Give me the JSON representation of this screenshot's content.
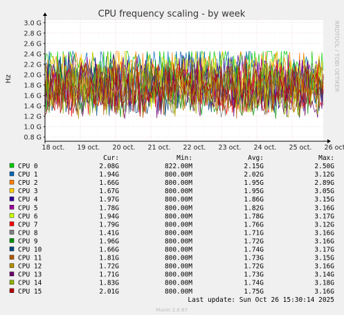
{
  "chart_data": {
    "type": "line",
    "title": "CPU frequency scaling - by week",
    "ylabel": "Hz",
    "xlabel": "",
    "side_label": "RRDTOOL / TOBI OETIKER",
    "y_ticks": [
      "0.8 G",
      "1.0 G",
      "1.2 G",
      "1.4 G",
      "1.6 G",
      "1.8 G",
      "2.0 G",
      "2.2 G",
      "2.4 G",
      "2.6 G",
      "2.8 G",
      "3.0 G"
    ],
    "ylim": [
      0.72,
      3.05
    ],
    "x_ticks": [
      "18 oct.",
      "19 oct.",
      "20 oct.",
      "21 oct.",
      "22 oct.",
      "23 oct.",
      "24 oct.",
      "25 oct.",
      "26 oct."
    ],
    "grid": true,
    "legend_headers": {
      "cur": "Cur:",
      "min": "Min:",
      "avg": "Avg:",
      "max": "Max:"
    },
    "series": [
      {
        "name": "CPU 0",
        "color": "#00cc00",
        "cur": "2.08G",
        "min": "822.00M",
        "avg": "2.15G",
        "max": "2.50G"
      },
      {
        "name": "CPU 1",
        "color": "#0066b3",
        "cur": "1.94G",
        "min": "800.00M",
        "avg": "2.02G",
        "max": "3.12G"
      },
      {
        "name": "CPU 2",
        "color": "#ff8000",
        "cur": "1.66G",
        "min": "800.00M",
        "avg": "1.95G",
        "max": "2.89G"
      },
      {
        "name": "CPU 3",
        "color": "#ffcc00",
        "cur": "1.67G",
        "min": "800.00M",
        "avg": "1.95G",
        "max": "3.05G"
      },
      {
        "name": "CPU 4",
        "color": "#330099",
        "cur": "1.97G",
        "min": "800.00M",
        "avg": "1.86G",
        "max": "3.15G"
      },
      {
        "name": "CPU 5",
        "color": "#990099",
        "cur": "1.78G",
        "min": "800.00M",
        "avg": "1.82G",
        "max": "3.16G"
      },
      {
        "name": "CPU 6",
        "color": "#ccff00",
        "cur": "1.94G",
        "min": "800.00M",
        "avg": "1.78G",
        "max": "3.17G"
      },
      {
        "name": "CPU 7",
        "color": "#ff0000",
        "cur": "1.79G",
        "min": "800.00M",
        "avg": "1.76G",
        "max": "3.12G"
      },
      {
        "name": "CPU 8",
        "color": "#808080",
        "cur": "1.41G",
        "min": "800.00M",
        "avg": "1.71G",
        "max": "3.16G"
      },
      {
        "name": "CPU 9",
        "color": "#008f00",
        "cur": "1.96G",
        "min": "800.00M",
        "avg": "1.72G",
        "max": "3.16G"
      },
      {
        "name": "CPU 10",
        "color": "#00487d",
        "cur": "1.66G",
        "min": "800.00M",
        "avg": "1.74G",
        "max": "3.17G"
      },
      {
        "name": "CPU 11",
        "color": "#b35a00",
        "cur": "1.81G",
        "min": "800.00M",
        "avg": "1.73G",
        "max": "3.15G"
      },
      {
        "name": "CPU 12",
        "color": "#b38f00",
        "cur": "1.72G",
        "min": "800.00M",
        "avg": "1.72G",
        "max": "3.16G"
      },
      {
        "name": "CPU 13",
        "color": "#6b006b",
        "cur": "1.71G",
        "min": "800.00M",
        "avg": "1.73G",
        "max": "3.14G"
      },
      {
        "name": "CPU 14",
        "color": "#8fb300",
        "cur": "1.83G",
        "min": "800.00M",
        "avg": "1.74G",
        "max": "3.18G"
      },
      {
        "name": "CPU 15",
        "color": "#b30000",
        "cur": "2.01G",
        "min": "800.00M",
        "avg": "1.75G",
        "max": "3.16G"
      }
    ]
  },
  "last_update": "Last update: Sun Oct 26 15:30:14 2025",
  "footer": "Munin 2.0.67"
}
